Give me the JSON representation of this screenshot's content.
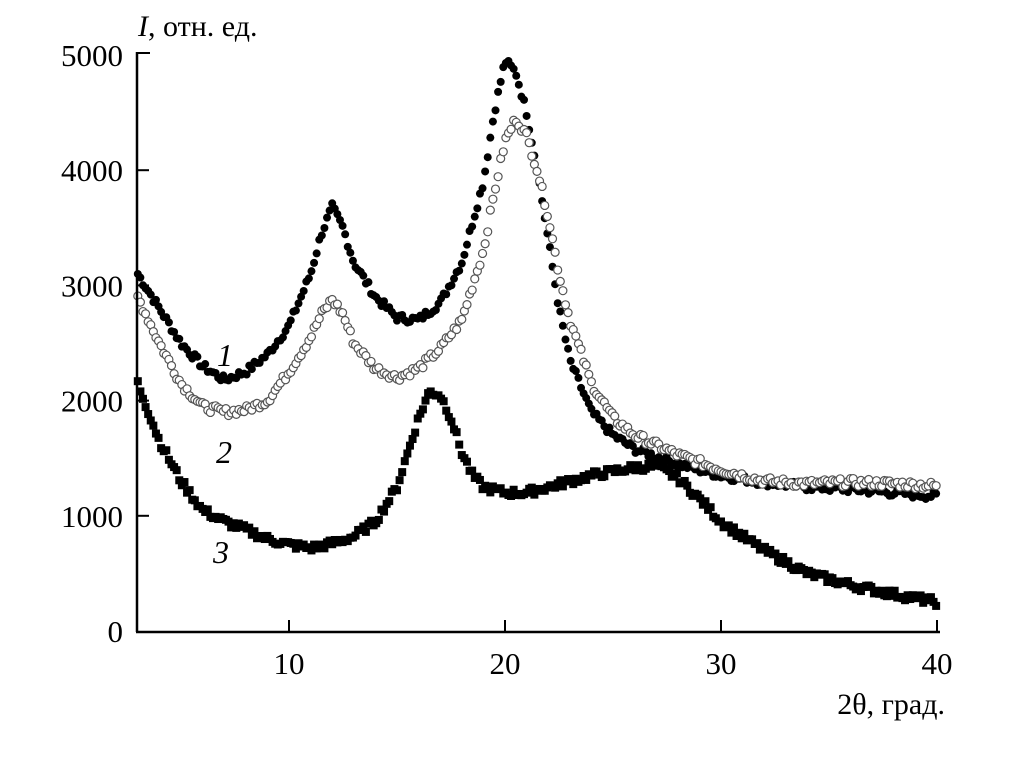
{
  "chart_data": {
    "type": "scatter",
    "title": "",
    "ylabel_symbol": "I",
    "ylabel_rest": ", отн. ед.",
    "xlabel": "2θ, град.",
    "xlim": [
      3,
      40
    ],
    "ylim": [
      0,
      5000
    ],
    "xticks": [
      10,
      20,
      30,
      40
    ],
    "yticks": [
      0,
      1000,
      2000,
      3000,
      4000,
      5000
    ],
    "grid": false,
    "legend": "none",
    "series": [
      {
        "label": "1",
        "marker": "filled-circle",
        "color": "#000000",
        "x": [
          3,
          4,
          5,
          6,
          7,
          8,
          9,
          10,
          11,
          11.5,
          12,
          12.5,
          13,
          14,
          15,
          16,
          17,
          18,
          19,
          19.5,
          20,
          20.5,
          21,
          21.5,
          22,
          22.5,
          23,
          24,
          25,
          26,
          28,
          30,
          32,
          34,
          36,
          38,
          40
        ],
        "y": [
          3100,
          2800,
          2500,
          2300,
          2180,
          2250,
          2400,
          2650,
          3100,
          3450,
          3680,
          3500,
          3200,
          2900,
          2720,
          2700,
          2850,
          3200,
          3900,
          4500,
          4950,
          4850,
          4500,
          4000,
          3400,
          2800,
          2350,
          1900,
          1700,
          1580,
          1450,
          1350,
          1290,
          1250,
          1230,
          1200,
          1170
        ]
      },
      {
        "label": "2",
        "marker": "open-circle",
        "color": "#555555",
        "x": [
          3,
          4,
          5,
          6,
          7,
          8,
          9,
          10,
          11,
          11.5,
          12,
          12.5,
          13,
          14,
          15,
          16,
          17,
          18,
          19,
          19.5,
          20,
          20.5,
          21,
          21.5,
          22,
          22.5,
          23,
          24,
          25,
          26,
          28,
          30,
          32,
          34,
          36,
          38,
          40
        ],
        "y": [
          2900,
          2500,
          2150,
          1950,
          1900,
          1920,
          2000,
          2250,
          2550,
          2750,
          2880,
          2750,
          2500,
          2280,
          2200,
          2280,
          2450,
          2700,
          3300,
          3800,
          4250,
          4450,
          4300,
          4000,
          3600,
          3100,
          2700,
          2150,
          1850,
          1700,
          1530,
          1400,
          1300,
          1280,
          1290,
          1280,
          1260
        ]
      },
      {
        "label": "3",
        "marker": "filled-square",
        "color": "#000000",
        "x": [
          3,
          4,
          5,
          6,
          7,
          8,
          9,
          10,
          11,
          12,
          13,
          14,
          15,
          15.5,
          16,
          16.5,
          17,
          17.5,
          18,
          18.5,
          19,
          20,
          21,
          22,
          24,
          26,
          27,
          28,
          29,
          30,
          31,
          32,
          34,
          36,
          38,
          40
        ],
        "y": [
          2150,
          1650,
          1300,
          1050,
          950,
          880,
          800,
          750,
          720,
          760,
          820,
          950,
          1250,
          1550,
          1850,
          2080,
          2050,
          1850,
          1550,
          1350,
          1250,
          1200,
          1200,
          1250,
          1350,
          1420,
          1430,
          1330,
          1150,
          950,
          820,
          700,
          500,
          400,
          320,
          250
        ]
      }
    ]
  }
}
